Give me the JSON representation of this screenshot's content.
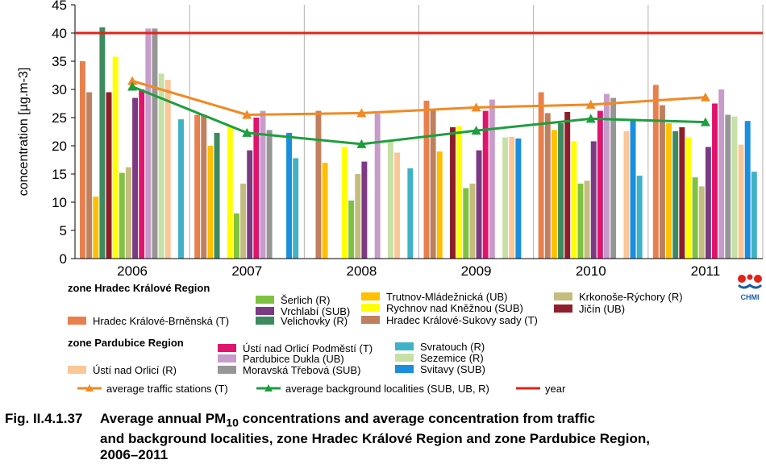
{
  "chart_data": {
    "type": "bar",
    "ylabel": "concentration [µg.m-3]",
    "ylim": [
      0,
      45
    ],
    "yticks": [
      0,
      5,
      10,
      15,
      20,
      25,
      30,
      35,
      40,
      45
    ],
    "categories": [
      "2006",
      "2007",
      "2008",
      "2009",
      "2010",
      "2011"
    ],
    "grid": true,
    "series": [
      {
        "name": "Hradec Králové-Brněnská (T)",
        "color": "#e8804e",
        "values": [
          35.0,
          25.5,
          null,
          28.0,
          29.5,
          30.8
        ]
      },
      {
        "name": "Hradec Králové-Sukovy sady (T)",
        "color": "#bf8060",
        "values": [
          29.5,
          25.5,
          26.2,
          26.5,
          25.8,
          27.2
        ]
      },
      {
        "name": "Trutnov-Mládežnická (UB)",
        "color": "#ffc000",
        "values": [
          11.0,
          20.0,
          17.0,
          19.0,
          22.8,
          24.0
        ]
      },
      {
        "name": "Velichovky (R)",
        "color": "#3e8a5f",
        "values": [
          41.0,
          22.3,
          null,
          null,
          24.0,
          22.6
        ]
      },
      {
        "name": "Jičín (UB)",
        "color": "#8e1e2a",
        "values": [
          29.5,
          null,
          null,
          23.3,
          26.0,
          23.3
        ]
      },
      {
        "name": "Rychnov nad Kněžnou (SUB)",
        "color": "#ffff00",
        "values": [
          35.8,
          23.5,
          19.8,
          23.5,
          20.8,
          21.5
        ]
      },
      {
        "name": "Šerlich (R)",
        "color": "#7fc241",
        "values": [
          15.2,
          8.0,
          10.3,
          12.5,
          13.3,
          14.4
        ]
      },
      {
        "name": "Krkonoše-Rýchory (R)",
        "color": "#c4bd7e",
        "values": [
          16.2,
          13.3,
          15.0,
          13.3,
          13.8,
          12.8
        ]
      },
      {
        "name": "Vrchlabí (SUB)",
        "color": "#7c3a82",
        "values": [
          28.5,
          19.2,
          17.2,
          19.2,
          20.8,
          19.8
        ]
      },
      {
        "name": "Ústí nad Orlicí Podměstí (T)",
        "color": "#e0146c",
        "values": [
          30.0,
          25.0,
          null,
          26.2,
          26.2,
          27.5
        ]
      },
      {
        "name": "Pardubice Dukla (UB)",
        "color": "#c79ccb",
        "values": [
          40.8,
          26.2,
          25.7,
          28.2,
          29.2,
          30.0
        ]
      },
      {
        "name": "Moravská Třebová (SUB)",
        "color": "#969696",
        "values": [
          40.8,
          22.8,
          null,
          null,
          28.5,
          25.5
        ]
      },
      {
        "name": "Sezemice (R)",
        "color": "#c6e0a5",
        "values": [
          32.8,
          null,
          20.8,
          21.5,
          null,
          25.2
        ]
      },
      {
        "name": "Ústí nad Orlicí (R)",
        "color": "#f9c798",
        "values": [
          31.7,
          null,
          18.8,
          21.6,
          22.6,
          20.2
        ]
      },
      {
        "name": "Svitavy (SUB)",
        "color": "#1a8fe0",
        "values": [
          null,
          22.3,
          null,
          21.3,
          24.5,
          24.4
        ]
      },
      {
        "name": "Svratouch (R)",
        "color": "#3fb2c7",
        "values": [
          24.7,
          17.8,
          16.0,
          null,
          14.7,
          15.4
        ]
      }
    ],
    "lines": [
      {
        "name": "average traffic stations (T)",
        "color": "#f08a24",
        "marker": "triangle",
        "values": [
          31.5,
          25.5,
          25.8,
          26.8,
          27.3,
          28.6
        ]
      },
      {
        "name": "average background localities  (SUB, UB, R)",
        "color": "#1e9e3e",
        "marker": "triangle",
        "values": [
          30.5,
          22.3,
          20.3,
          22.7,
          24.8,
          24.2
        ]
      }
    ],
    "limit_line": {
      "name": "year",
      "color": "#e2231a",
      "value": 40
    }
  },
  "legend": {
    "zone_hk": "zone Hradec Králové Region",
    "zone_pa": "zone Pardubice Region"
  },
  "logo_text": "CHMI",
  "caption": {
    "number": "Fig. II.4.1.37",
    "line1_a": "Average annual PM",
    "line1_sub": "10",
    "line1_b": " concentrations and average concentration from traffic",
    "line2": "and background localities, zone Hradec Králové Region and zone Pardubice Region,",
    "line3": "2006–2011"
  }
}
